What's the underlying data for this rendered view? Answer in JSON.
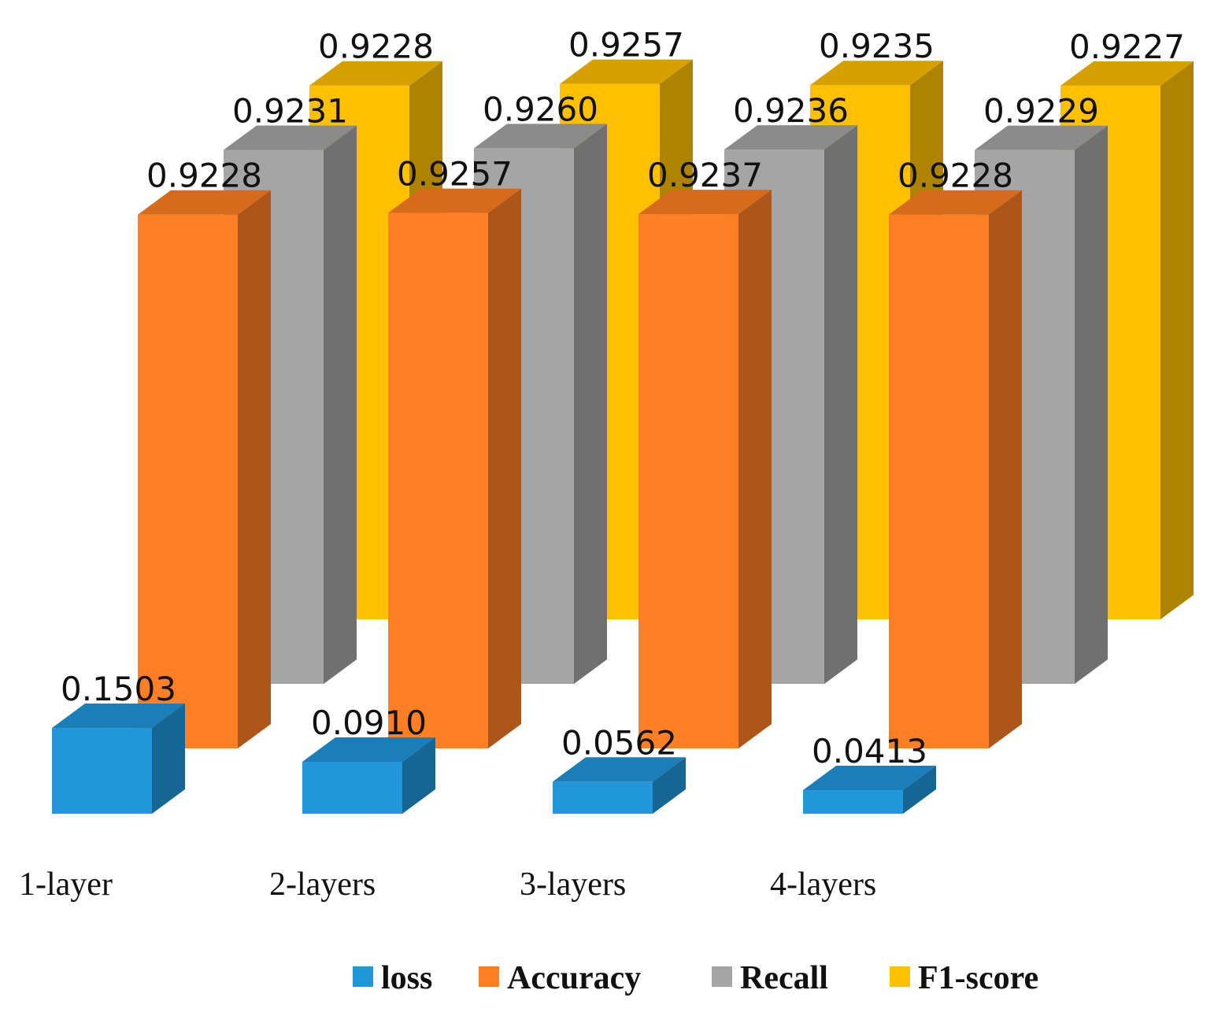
{
  "chart_data": {
    "type": "bar",
    "style": "3d-clustered-depth",
    "categories": [
      "1-layer",
      "2-layers",
      "3-layers",
      "4-layers"
    ],
    "series": [
      {
        "name": "loss",
        "values": [
          0.1503,
          0.091,
          0.0562,
          0.0413
        ],
        "labels": [
          "0.1503",
          "0.0910",
          "0.0562",
          "0.0413"
        ],
        "color": "#2196d9"
      },
      {
        "name": "Accuracy",
        "values": [
          0.9228,
          0.9257,
          0.9237,
          0.9228
        ],
        "labels": [
          "0.9228",
          "0.9257",
          "0.9237",
          "0.9228"
        ],
        "color": "#ff7f24"
      },
      {
        "name": "Recall",
        "values": [
          0.9231,
          0.926,
          0.9236,
          0.9229
        ],
        "labels": [
          "0.9231",
          "0.9260",
          "0.9236",
          "0.9229"
        ],
        "color": "#a5a5a5"
      },
      {
        "name": "F1-score",
        "values": [
          0.9228,
          0.9257,
          0.9235,
          0.9227
        ],
        "labels": [
          "0.9228",
          "0.9257",
          "0.9235",
          "0.9227"
        ],
        "color": "#ffc000"
      }
    ],
    "title": "",
    "xlabel": "",
    "ylabel": "",
    "ylim": [
      0,
      1
    ],
    "grid": false,
    "legend_position": "bottom"
  }
}
